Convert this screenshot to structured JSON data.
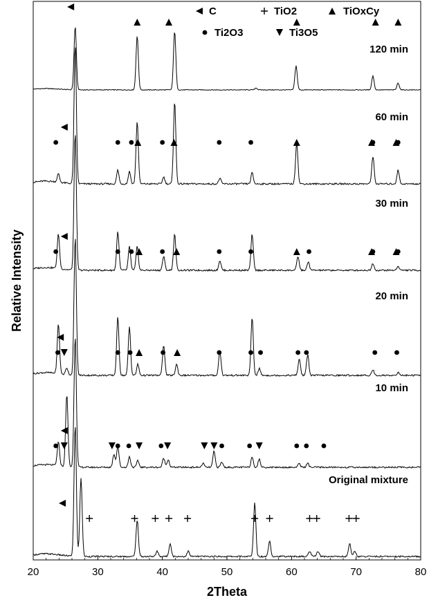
{
  "chart_data": {
    "type": "line",
    "xlabel": "2Theta",
    "ylabel": "Relative Intensity",
    "xlim": [
      20,
      80
    ],
    "x_ticks": [
      "20",
      "30",
      "40",
      "50",
      "60",
      "70",
      "80"
    ],
    "legend": [
      {
        "marker": "left-triangle",
        "label": "C"
      },
      {
        "marker": "plus",
        "label": "TiO2"
      },
      {
        "marker": "up-triangle",
        "label": "TiOxCy"
      },
      {
        "marker": "circle",
        "label": "Ti2O3"
      },
      {
        "marker": "down-triangle",
        "label": "Ti3O5"
      }
    ],
    "series": [
      {
        "name": "120 min",
        "peaks": [
          [
            26.5,
            1.0
          ],
          [
            36.1,
            0.85
          ],
          [
            41.9,
            0.93
          ],
          [
            60.7,
            0.38
          ],
          [
            72.6,
            0.22
          ],
          [
            76.5,
            0.11
          ],
          [
            54.5,
            0.03
          ]
        ],
        "markers": [
          {
            "x": 25.8,
            "type": "left-triangle"
          },
          {
            "x": 36.1,
            "type": "up-triangle"
          },
          {
            "x": 41.0,
            "type": "up-triangle"
          },
          {
            "x": 60.8,
            "type": "up-triangle"
          },
          {
            "x": 73.0,
            "type": "up-triangle"
          },
          {
            "x": 76.5,
            "type": "up-triangle"
          }
        ]
      },
      {
        "name": "60 min",
        "peaks": [
          [
            26.5,
            1.0
          ],
          [
            23.9,
            0.06
          ],
          [
            33.1,
            0.1
          ],
          [
            34.9,
            0.09
          ],
          [
            36.1,
            0.45
          ],
          [
            40.2,
            0.05
          ],
          [
            41.9,
            0.6
          ],
          [
            48.9,
            0.04
          ],
          [
            53.9,
            0.08
          ],
          [
            60.8,
            0.3
          ],
          [
            72.6,
            0.2
          ],
          [
            76.5,
            0.1
          ]
        ],
        "markers": [
          {
            "x": 24.8,
            "type": "left-triangle"
          },
          {
            "x": 23.5,
            "type": "circle"
          },
          {
            "x": 33.1,
            "type": "circle"
          },
          {
            "x": 35.2,
            "type": "circle"
          },
          {
            "x": 36.2,
            "type": "up-triangle"
          },
          {
            "x": 40.0,
            "type": "circle"
          },
          {
            "x": 41.8,
            "type": "up-triangle"
          },
          {
            "x": 48.8,
            "type": "circle"
          },
          {
            "x": 53.7,
            "type": "circle"
          },
          {
            "x": 60.8,
            "type": "up-triangle"
          },
          {
            "x": 72.4,
            "type": "up-triangle"
          },
          {
            "x": 72.6,
            "type": "circle"
          },
          {
            "x": 76.2,
            "type": "up-triangle"
          },
          {
            "x": 76.5,
            "type": "circle"
          }
        ]
      },
      {
        "name": "30 min",
        "peaks": [
          [
            26.5,
            1.0
          ],
          [
            23.9,
            0.25
          ],
          [
            33.1,
            0.28
          ],
          [
            34.9,
            0.17
          ],
          [
            36.1,
            0.17
          ],
          [
            40.2,
            0.1
          ],
          [
            41.9,
            0.26
          ],
          [
            48.9,
            0.07
          ],
          [
            53.9,
            0.26
          ],
          [
            61.0,
            0.1
          ],
          [
            62.6,
            0.06
          ],
          [
            72.6,
            0.05
          ],
          [
            76.5,
            0.03
          ]
        ],
        "markers": [
          {
            "x": 24.8,
            "type": "left-triangle"
          },
          {
            "x": 23.5,
            "type": "circle"
          },
          {
            "x": 33.1,
            "type": "circle"
          },
          {
            "x": 35.2,
            "type": "circle"
          },
          {
            "x": 36.4,
            "type": "up-triangle"
          },
          {
            "x": 40.0,
            "type": "circle"
          },
          {
            "x": 42.2,
            "type": "up-triangle"
          },
          {
            "x": 48.8,
            "type": "circle"
          },
          {
            "x": 53.7,
            "type": "circle"
          },
          {
            "x": 60.8,
            "type": "up-triangle"
          },
          {
            "x": 62.7,
            "type": "circle"
          },
          {
            "x": 72.4,
            "type": "up-triangle"
          },
          {
            "x": 72.6,
            "type": "circle"
          },
          {
            "x": 76.2,
            "type": "up-triangle"
          },
          {
            "x": 76.5,
            "type": "circle"
          }
        ]
      },
      {
        "name": "20 min",
        "peaks": [
          [
            26.5,
            1.0
          ],
          [
            23.9,
            0.36
          ],
          [
            25.2,
            0.05
          ],
          [
            33.1,
            0.42
          ],
          [
            34.9,
            0.35
          ],
          [
            36.2,
            0.08
          ],
          [
            40.2,
            0.22
          ],
          [
            42.2,
            0.08
          ],
          [
            48.9,
            0.18
          ],
          [
            53.9,
            0.42
          ],
          [
            55.0,
            0.05
          ],
          [
            61.2,
            0.12
          ],
          [
            62.5,
            0.15
          ],
          [
            72.6,
            0.04
          ],
          [
            76.5,
            0.02
          ]
        ],
        "markers": [
          {
            "x": 24.2,
            "type": "left-triangle"
          },
          {
            "x": 23.8,
            "type": "circle"
          },
          {
            "x": 24.8,
            "type": "down-triangle"
          },
          {
            "x": 33.1,
            "type": "circle"
          },
          {
            "x": 35.0,
            "type": "circle"
          },
          {
            "x": 36.4,
            "type": "up-triangle"
          },
          {
            "x": 40.1,
            "type": "circle"
          },
          {
            "x": 42.3,
            "type": "up-triangle"
          },
          {
            "x": 48.8,
            "type": "circle"
          },
          {
            "x": 53.7,
            "type": "circle"
          },
          {
            "x": 55.2,
            "type": "circle"
          },
          {
            "x": 61.0,
            "type": "circle"
          },
          {
            "x": 62.3,
            "type": "circle"
          },
          {
            "x": 72.9,
            "type": "circle"
          },
          {
            "x": 76.3,
            "type": "circle"
          }
        ]
      },
      {
        "name": "10 min",
        "peaks": [
          [
            26.5,
            1.0
          ],
          [
            23.9,
            0.18
          ],
          [
            25.2,
            0.55
          ],
          [
            32.5,
            0.1
          ],
          [
            33.1,
            0.16
          ],
          [
            34.9,
            0.08
          ],
          [
            36.2,
            0.05
          ],
          [
            40.2,
            0.07
          ],
          [
            40.9,
            0.06
          ],
          [
            46.3,
            0.03
          ],
          [
            48.0,
            0.12
          ],
          [
            49.2,
            0.04
          ],
          [
            53.9,
            0.08
          ],
          [
            55.0,
            0.06
          ],
          [
            61.2,
            0.03
          ],
          [
            62.5,
            0.03
          ]
        ],
        "markers": [
          {
            "x": 24.8,
            "type": "left-triangle"
          },
          {
            "x": 24.8,
            "type": "down-triangle"
          },
          {
            "x": 23.5,
            "type": "circle"
          },
          {
            "x": 32.2,
            "type": "down-triangle"
          },
          {
            "x": 33.1,
            "type": "circle"
          },
          {
            "x": 34.8,
            "type": "circle"
          },
          {
            "x": 36.4,
            "type": "down-triangle"
          },
          {
            "x": 39.8,
            "type": "circle"
          },
          {
            "x": 40.8,
            "type": "down-triangle"
          },
          {
            "x": 46.5,
            "type": "down-triangle"
          },
          {
            "x": 48.0,
            "type": "down-triangle"
          },
          {
            "x": 49.2,
            "type": "circle"
          },
          {
            "x": 53.5,
            "type": "circle"
          },
          {
            "x": 55.0,
            "type": "down-triangle"
          },
          {
            "x": 60.8,
            "type": "circle"
          },
          {
            "x": 62.3,
            "type": "circle"
          },
          {
            "x": 65.0,
            "type": "circle"
          }
        ]
      },
      {
        "name": "Original mixture",
        "peaks": [
          [
            26.5,
            1.0
          ],
          [
            27.4,
            0.6
          ],
          [
            36.1,
            0.28
          ],
          [
            39.2,
            0.04
          ],
          [
            41.2,
            0.1
          ],
          [
            44.0,
            0.04
          ],
          [
            54.3,
            0.41
          ],
          [
            56.6,
            0.12
          ],
          [
            62.8,
            0.04
          ],
          [
            64.1,
            0.04
          ],
          [
            69.0,
            0.1
          ],
          [
            69.8,
            0.04
          ]
        ],
        "markers": [
          {
            "x": 24.5,
            "type": "left-triangle"
          },
          {
            "x": 28.7,
            "type": "plus"
          },
          {
            "x": 35.7,
            "type": "plus"
          },
          {
            "x": 38.9,
            "type": "plus"
          },
          {
            "x": 41.0,
            "type": "plus"
          },
          {
            "x": 43.9,
            "type": "plus"
          },
          {
            "x": 54.3,
            "type": "plus"
          },
          {
            "x": 56.6,
            "type": "plus"
          },
          {
            "x": 62.8,
            "type": "plus"
          },
          {
            "x": 63.9,
            "type": "plus"
          },
          {
            "x": 68.9,
            "type": "plus"
          },
          {
            "x": 70.0,
            "type": "plus"
          }
        ]
      }
    ]
  }
}
